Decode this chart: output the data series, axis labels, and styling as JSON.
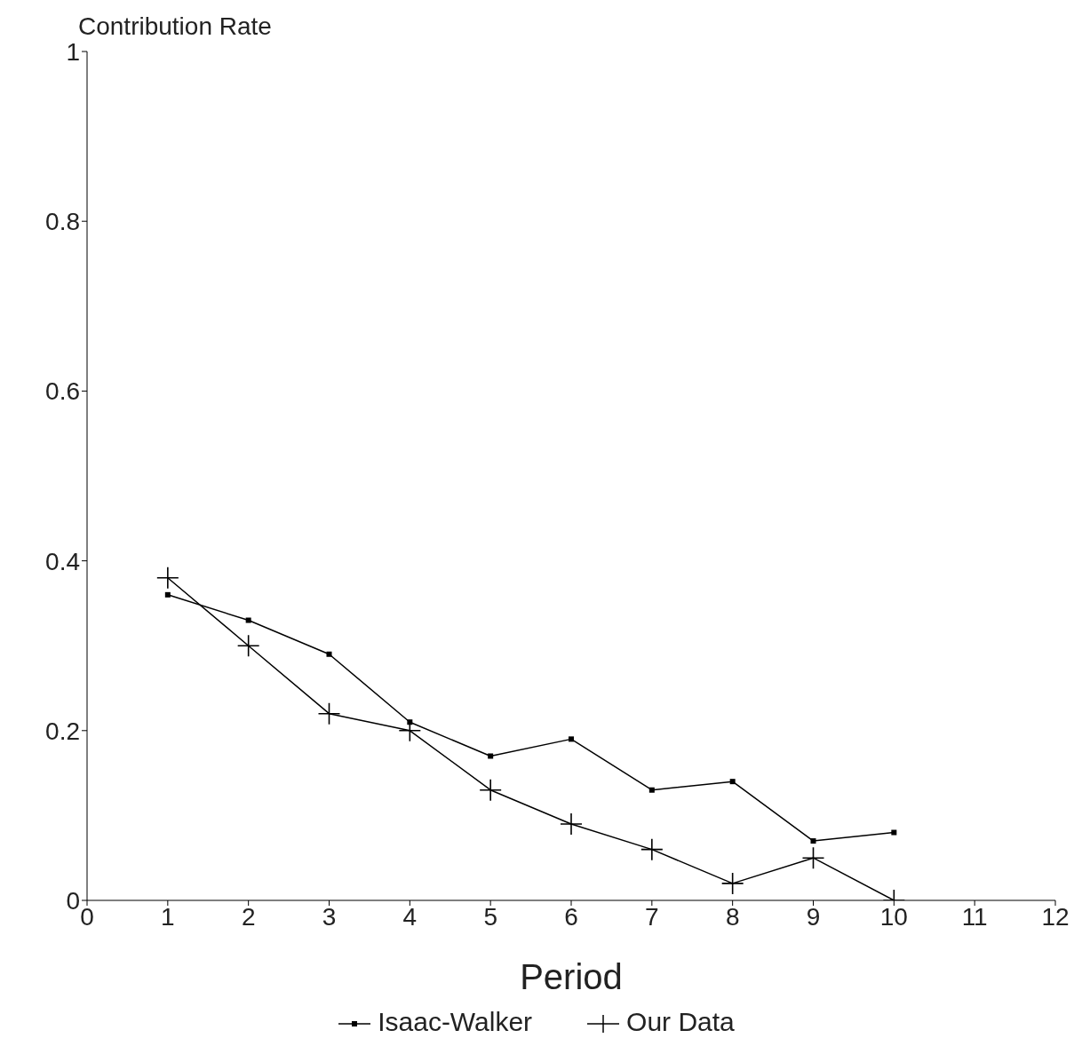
{
  "chart_data": {
    "type": "line",
    "xlabel": "Period",
    "ylabel": "Contribution Rate",
    "x": [
      1,
      2,
      3,
      4,
      5,
      6,
      7,
      8,
      9,
      10
    ],
    "xlim": [
      0,
      12
    ],
    "xticks": [
      0,
      1,
      2,
      3,
      4,
      5,
      6,
      7,
      8,
      9,
      10,
      11,
      12
    ],
    "ylim": [
      0,
      1
    ],
    "yticks": [
      0,
      0.2,
      0.4,
      0.6,
      0.8,
      1
    ],
    "grid": false,
    "legend": "bottom",
    "series": [
      {
        "name": "Isaac-Walker",
        "color": "#000000",
        "marker": "square",
        "values": [
          0.36,
          0.33,
          0.29,
          0.21,
          0.17,
          0.19,
          0.13,
          0.14,
          0.07,
          0.08
        ]
      },
      {
        "name": "Our Data",
        "color": "#000000",
        "marker": "cross",
        "values": [
          0.38,
          0.3,
          0.22,
          0.2,
          0.13,
          0.09,
          0.06,
          0.02,
          0.05,
          0
        ]
      }
    ]
  }
}
